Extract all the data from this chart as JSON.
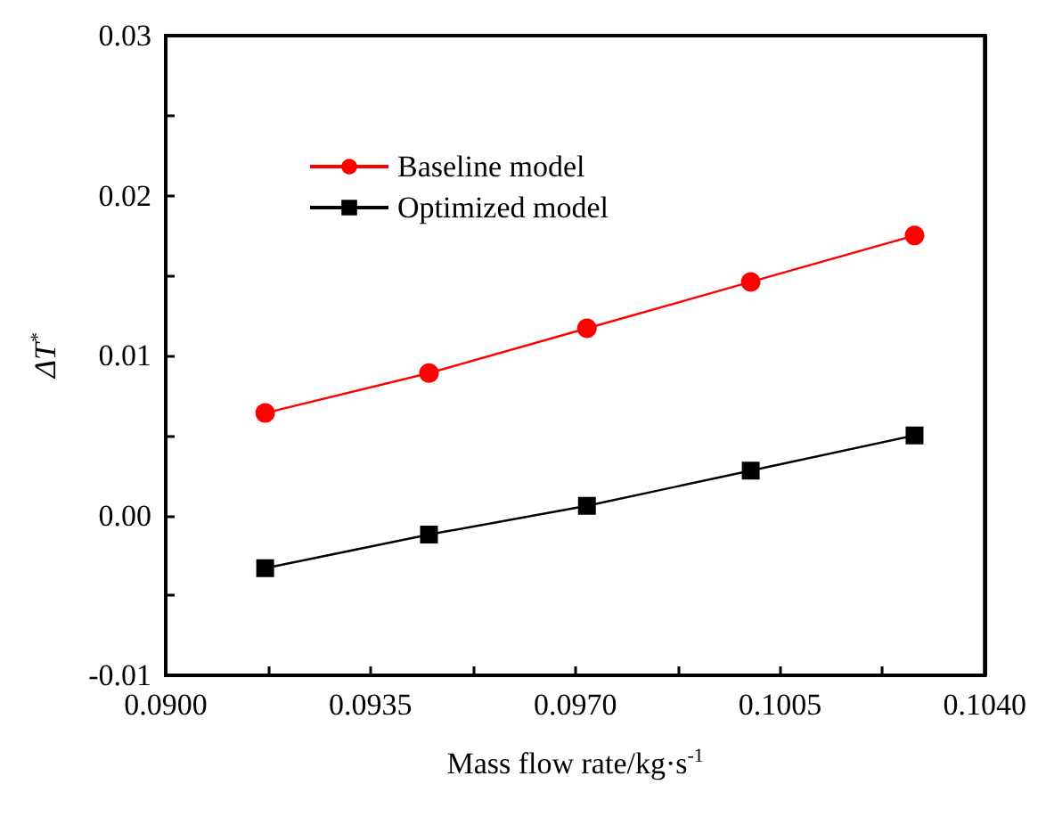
{
  "chart_data": {
    "type": "line",
    "xlabel": "Mass flow rate/kg·s$^{-1}$",
    "ylabel": "ΔT$^{*}$",
    "xlim": [
      0.09,
      0.104
    ],
    "xticks": [
      {
        "value": 0.09,
        "label": "0.0900"
      },
      {
        "value": 0.09175,
        "label": null
      },
      {
        "value": 0.0935,
        "label": "0.0935"
      },
      {
        "value": 0.09525,
        "label": null
      },
      {
        "value": 0.097,
        "label": "0.0970"
      },
      {
        "value": 0.09875,
        "label": null
      },
      {
        "value": 0.1005,
        "label": "0.1005"
      },
      {
        "value": 0.10225,
        "label": null
      },
      {
        "value": 0.104,
        "label": "0.1040"
      }
    ],
    "ylim": [
      -0.01,
      0.03
    ],
    "yticks": [
      {
        "value": -0.01,
        "label": "-0.01"
      },
      {
        "value": -0.005,
        "label": null
      },
      {
        "value": 0,
        "label": "0.00"
      },
      {
        "value": 0.005,
        "label": null
      },
      {
        "value": 0.01,
        "label": "0.01"
      },
      {
        "value": 0.015,
        "label": null
      },
      {
        "value": 0.02,
        "label": "0.02"
      },
      {
        "value": 0.025,
        "label": null
      },
      {
        "value": 0.03,
        "label": "0.03"
      }
    ],
    "x": [
      0.0917,
      0.0945,
      0.0972,
      0.1,
      0.1028
    ],
    "series": [
      {
        "name": "Baseline model",
        "color": "#ff0000",
        "marker": "circle",
        "values": [
          0.0064,
          0.0089,
          0.0117,
          0.0146,
          0.0175
        ]
      },
      {
        "name": "Optimized model",
        "color": "#000000",
        "marker": "square",
        "values": [
          -0.0033,
          -0.0012,
          0.0006,
          0.0028,
          0.005
        ]
      }
    ],
    "legend": "top left",
    "grid": false,
    "line_style": "solid"
  }
}
